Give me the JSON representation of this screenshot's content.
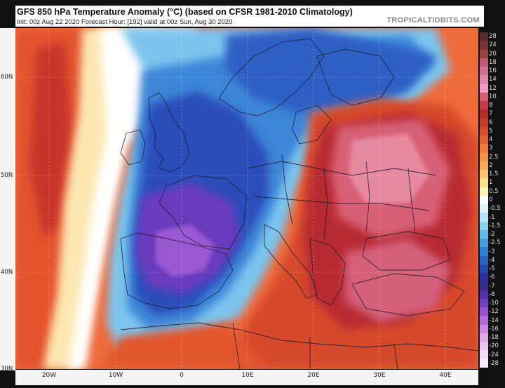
{
  "header": {
    "title": "GFS 850 hPa Temperature Anomaly (°C) (based on CFSR 1981-2010 Climatology)",
    "subtitle": "Init: 00z Aug 22 2020   Forecast Hour: [192]   valid at 00z Sun, Aug 30 2020",
    "brand": "TROPICALTIDBITS.COM"
  },
  "axes": {
    "latitude_labels": [
      "60N",
      "50N",
      "40N",
      "30N"
    ],
    "longitude_labels": [
      "20W",
      "10W",
      "0",
      "10E",
      "20E",
      "30E",
      "40E"
    ]
  },
  "legend": {
    "levels": [
      {
        "label": "28",
        "color": "#5c2a2a"
      },
      {
        "label": "24",
        "color": "#7a3434"
      },
      {
        "label": "20",
        "color": "#9a4343"
      },
      {
        "label": "18",
        "color": "#c05a74"
      },
      {
        "label": "16",
        "color": "#d06f8e"
      },
      {
        "label": "14",
        "color": "#e087a6"
      },
      {
        "label": "12",
        "color": "#ee9fbd"
      },
      {
        "label": "10",
        "color": "#d85f72"
      },
      {
        "label": "8",
        "color": "#c8374a"
      },
      {
        "label": "7",
        "color": "#b72a2e"
      },
      {
        "label": "6",
        "color": "#c93a2a"
      },
      {
        "label": "5",
        "color": "#db4a2c"
      },
      {
        "label": "4",
        "color": "#e9602f"
      },
      {
        "label": "3",
        "color": "#f17a38"
      },
      {
        "label": "2.5",
        "color": "#f59347"
      },
      {
        "label": "2",
        "color": "#f8ab57"
      },
      {
        "label": "1.5",
        "color": "#fbc46c"
      },
      {
        "label": "1",
        "color": "#fde08a"
      },
      {
        "label": "0.5",
        "color": "#fff3b5"
      },
      {
        "label": "0",
        "color": "#ffffff"
      },
      {
        "label": "-0.5",
        "color": "#dff3fb"
      },
      {
        "label": "-1",
        "color": "#b5e3f5"
      },
      {
        "label": "-1.5",
        "color": "#8fd0ef"
      },
      {
        "label": "-2",
        "color": "#66b8e8"
      },
      {
        "label": "-2.5",
        "color": "#459ee0"
      },
      {
        "label": "-3",
        "color": "#2f80d4"
      },
      {
        "label": "-4",
        "color": "#2a62c4"
      },
      {
        "label": "-5",
        "color": "#2947b0"
      },
      {
        "label": "-6",
        "color": "#2e2f9a"
      },
      {
        "label": "-7",
        "color": "#3a2a8c"
      },
      {
        "label": "-8",
        "color": "#5530a8"
      },
      {
        "label": "-10",
        "color": "#7440c0"
      },
      {
        "label": "-12",
        "color": "#9552cf"
      },
      {
        "label": "-14",
        "color": "#b46bd8"
      },
      {
        "label": "-16",
        "color": "#cf89e2"
      },
      {
        "label": "-18",
        "color": "#e3a8ec"
      },
      {
        "label": "-20",
        "color": "#efc3f1"
      },
      {
        "label": "-24",
        "color": "#f6d9f6"
      },
      {
        "label": "-28",
        "color": "#fbeafb"
      }
    ]
  }
}
